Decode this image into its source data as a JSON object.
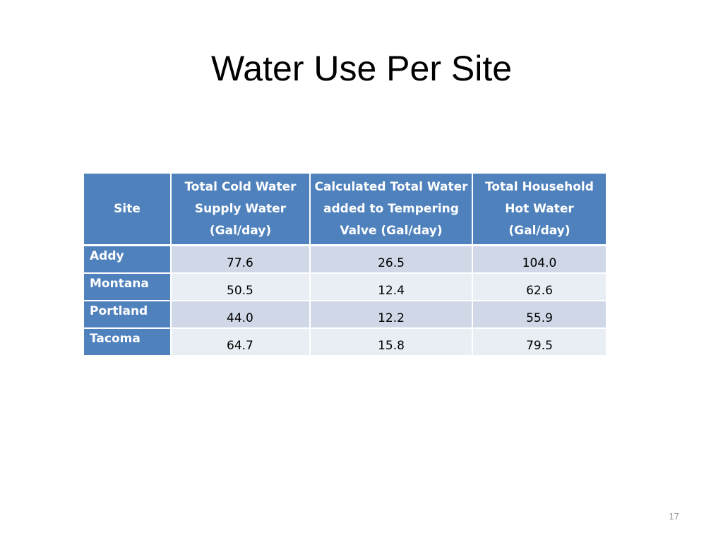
{
  "slide": {
    "title": "Water Use Per Site",
    "page_number": "17"
  },
  "table": {
    "headers": {
      "site": "Site",
      "cold_water": [
        "Total Cold Water",
        "Supply Water",
        "(Gal/day)"
      ],
      "calculated": [
        "Calculated Total Water",
        "added to Tempering",
        "Valve (Gal/day)"
      ],
      "hot_water": [
        "Total Household",
        "Hot Water",
        "(Gal/day)"
      ]
    },
    "rows": [
      {
        "site": "Addy",
        "cold": "77.6",
        "calc": "26.5",
        "hot": "104.0"
      },
      {
        "site": "Montana",
        "cold": "50.5",
        "calc": "12.4",
        "hot": "62.6"
      },
      {
        "site": "Portland",
        "cold": "44.0",
        "calc": "12.2",
        "hot": "55.9"
      },
      {
        "site": "Tacoma",
        "cold": "64.7",
        "calc": "15.8",
        "hot": "79.5"
      }
    ]
  },
  "colors": {
    "header_fill": "#4f81bd",
    "row_band_1": "#d0d8e8",
    "row_band_2": "#e9edf4"
  }
}
